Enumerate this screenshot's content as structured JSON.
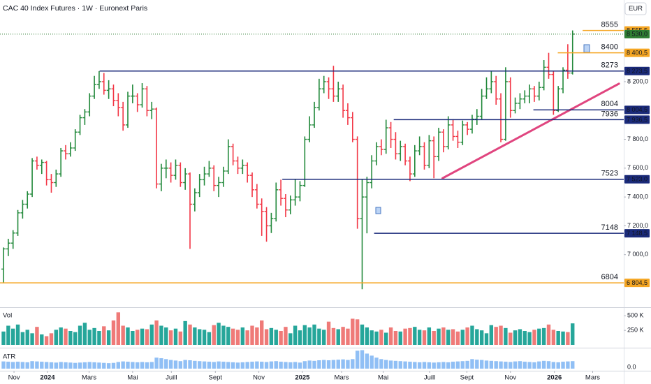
{
  "header": {
    "title": "CAC 40 Index Futures · 1W · Euronext Paris",
    "currency": "EUR"
  },
  "x_axis": {
    "ticks": [
      {
        "value": 2.2,
        "label": "Nov"
      },
      {
        "value": 9.2,
        "label": "2024"
      },
      {
        "value": 17.9,
        "label": "Mars"
      },
      {
        "value": 27.0,
        "label": "Mai"
      },
      {
        "value": 35.1,
        "label": "Juill"
      },
      {
        "value": 44.3,
        "label": "Sept"
      },
      {
        "value": 53.4,
        "label": "Nov"
      },
      {
        "value": 62.5,
        "label": "2025"
      },
      {
        "value": 70.7,
        "label": "Mars"
      },
      {
        "value": 79.4,
        "label": "Mai"
      },
      {
        "value": 89.1,
        "label": "Juill"
      },
      {
        "value": 96.9,
        "label": "Sept"
      },
      {
        "value": 106.0,
        "label": "Nov"
      },
      {
        "value": 115.2,
        "label": "2026"
      },
      {
        "value": 123.2,
        "label": "Mars"
      }
    ]
  },
  "chart_data": [
    {
      "type": "ohlc",
      "xlim": [
        -0.73,
        129.7
      ],
      "ylim": [
        6650,
        8660
      ],
      "up_color": "#22893b",
      "down_color": "#f23645",
      "yticks": [
        {
          "value": 8200,
          "label": "8 200,0"
        },
        {
          "value": 7800,
          "label": "7 800,0"
        },
        {
          "value": 7600,
          "label": "7 600,0"
        },
        {
          "value": 7400,
          "label": "7 400,0"
        },
        {
          "value": 7200,
          "label": "7 200,0"
        },
        {
          "value": 7000,
          "label": "7 000,0"
        }
      ],
      "ohlc": [
        [
          6900,
          7050,
          6805,
          7040
        ],
        [
          7040,
          7110,
          6990,
          7080
        ],
        [
          7080,
          7170,
          7040,
          7150
        ],
        [
          7150,
          7310,
          7130,
          7290
        ],
        [
          7290,
          7380,
          7250,
          7350
        ],
        [
          7350,
          7440,
          7320,
          7420
        ],
        [
          7420,
          7670,
          7400,
          7650
        ],
        [
          7650,
          7680,
          7590,
          7620
        ],
        [
          7620,
          7660,
          7560,
          7640
        ],
        [
          7640,
          7650,
          7480,
          7520
        ],
        [
          7520,
          7560,
          7430,
          7500
        ],
        [
          7500,
          7590,
          7470,
          7560
        ],
        [
          7560,
          7740,
          7540,
          7720
        ],
        [
          7720,
          7760,
          7660,
          7700
        ],
        [
          7700,
          7780,
          7680,
          7740
        ],
        [
          7740,
          7870,
          7720,
          7850
        ],
        [
          7850,
          7970,
          7830,
          7950
        ],
        [
          7950,
          8010,
          7900,
          7990
        ],
        [
          7990,
          8120,
          7960,
          8100
        ],
        [
          8100,
          8240,
          8080,
          8180
        ],
        [
          8180,
          8273,
          8150,
          8200
        ],
        [
          8200,
          8260,
          8110,
          8140
        ],
        [
          8140,
          8210,
          8080,
          8150
        ],
        [
          8150,
          8180,
          8030,
          8070
        ],
        [
          8070,
          8120,
          7960,
          8020
        ],
        [
          8020,
          8060,
          7860,
          7900
        ],
        [
          7900,
          8130,
          7880,
          8100
        ],
        [
          8100,
          8180,
          8050,
          8100
        ],
        [
          8100,
          8120,
          7990,
          8040
        ],
        [
          8040,
          8190,
          8020,
          8150
        ],
        [
          8150,
          8170,
          7960,
          8000
        ],
        [
          8000,
          8060,
          7940,
          8010
        ],
        [
          8010,
          8020,
          7460,
          7490
        ],
        [
          7490,
          7630,
          7440,
          7600
        ],
        [
          7600,
          7660,
          7530,
          7600
        ],
        [
          7600,
          7640,
          7500,
          7550
        ],
        [
          7550,
          7660,
          7520,
          7620
        ],
        [
          7620,
          7640,
          7470,
          7500
        ],
        [
          7500,
          7600,
          7450,
          7560
        ],
        [
          7560,
          7570,
          7040,
          7350
        ],
        [
          7350,
          7460,
          7300,
          7430
        ],
        [
          7430,
          7560,
          7400,
          7520
        ],
        [
          7520,
          7610,
          7480,
          7560
        ],
        [
          7560,
          7650,
          7540,
          7600
        ],
        [
          7600,
          7620,
          7440,
          7480
        ],
        [
          7480,
          7540,
          7400,
          7500
        ],
        [
          7500,
          7610,
          7470,
          7580
        ],
        [
          7580,
          7800,
          7560,
          7750
        ],
        [
          7750,
          7770,
          7620,
          7650
        ],
        [
          7650,
          7680,
          7560,
          7600
        ],
        [
          7600,
          7660,
          7560,
          7620
        ],
        [
          7620,
          7640,
          7500,
          7550
        ],
        [
          7550,
          7570,
          7400,
          7450
        ],
        [
          7450,
          7490,
          7320,
          7350
        ],
        [
          7350,
          7390,
          7130,
          7300
        ],
        [
          7300,
          7330,
          7090,
          7200
        ],
        [
          7200,
          7290,
          7150,
          7250
        ],
        [
          7250,
          7500,
          7230,
          7450
        ],
        [
          7450,
          7520,
          7340,
          7390
        ],
        [
          7390,
          7420,
          7260,
          7310
        ],
        [
          7310,
          7410,
          7280,
          7380
        ],
        [
          7380,
          7523,
          7340,
          7400
        ],
        [
          7400,
          7510,
          7370,
          7480
        ],
        [
          7480,
          7820,
          7470,
          7800
        ],
        [
          7800,
          7960,
          7780,
          7900
        ],
        [
          7900,
          8060,
          7880,
          8020
        ],
        [
          8020,
          8220,
          8000,
          8150
        ],
        [
          8150,
          8240,
          8120,
          8200
        ],
        [
          8200,
          8230,
          8080,
          8150
        ],
        [
          8150,
          8310,
          8060,
          8100
        ],
        [
          8100,
          8200,
          8060,
          8150
        ],
        [
          8150,
          8180,
          7950,
          8000
        ],
        [
          8000,
          8050,
          7900,
          7950
        ],
        [
          7950,
          7990,
          7780,
          7800
        ],
        [
          7800,
          7820,
          7180,
          7250
        ],
        [
          7250,
          7520,
          6760,
          7400
        ],
        [
          7400,
          7540,
          7148,
          7500
        ],
        [
          7500,
          7690,
          7460,
          7650
        ],
        [
          7650,
          7780,
          7620,
          7750
        ],
        [
          7750,
          7800,
          7690,
          7730
        ],
        [
          7730,
          7936,
          7700,
          7880
        ],
        [
          7880,
          7920,
          7740,
          7800
        ],
        [
          7800,
          7850,
          7660,
          7700
        ],
        [
          7700,
          7790,
          7650,
          7750
        ],
        [
          7750,
          7770,
          7620,
          7650
        ],
        [
          7650,
          7680,
          7510,
          7560
        ],
        [
          7560,
          7760,
          7540,
          7720
        ],
        [
          7720,
          7820,
          7690,
          7750
        ],
        [
          7750,
          7780,
          7590,
          7620
        ],
        [
          7620,
          7830,
          7600,
          7790
        ],
        [
          7790,
          7820,
          7530,
          7680
        ],
        [
          7680,
          7880,
          7650,
          7850
        ],
        [
          7850,
          7870,
          7710,
          7750
        ],
        [
          7750,
          7960,
          7730,
          7900
        ],
        [
          7900,
          7940,
          7790,
          7820
        ],
        [
          7820,
          7860,
          7740,
          7780
        ],
        [
          7780,
          7930,
          7760,
          7900
        ],
        [
          7900,
          7920,
          7830,
          7870
        ],
        [
          7870,
          7970,
          7840,
          7940
        ],
        [
          7940,
          8010,
          7900,
          7960
        ],
        [
          7960,
          8150,
          7940,
          8100
        ],
        [
          8100,
          8230,
          8080,
          8150
        ],
        [
          8150,
          8273,
          8120,
          8200
        ],
        [
          8200,
          8240,
          8040,
          8080
        ],
        [
          8080,
          8120,
          7780,
          7800
        ],
        [
          7800,
          8300,
          7790,
          8200
        ],
        [
          8200,
          8230,
          7950,
          8000
        ],
        [
          8000,
          8090,
          7980,
          8050
        ],
        [
          8050,
          8120,
          8010,
          8080
        ],
        [
          8080,
          8140,
          8050,
          8100
        ],
        [
          8100,
          8180,
          8050,
          8150
        ],
        [
          8150,
          8170,
          8060,
          8100
        ],
        [
          8100,
          8200,
          8070,
          8160
        ],
        [
          8160,
          8350,
          8140,
          8300
        ],
        [
          8300,
          8400,
          8220,
          8250
        ],
        [
          8250,
          8270,
          7970,
          8000
        ],
        [
          8000,
          8170,
          7990,
          8150
        ],
        [
          8150,
          8300,
          8120,
          8280
        ],
        [
          8280,
          8460,
          8220,
          8260
        ],
        [
          8260,
          8555.5,
          8250,
          8530
        ]
      ],
      "levels": [
        {
          "text": "8555",
          "value": 8555.5,
          "price_label": "8 555,5",
          "from": 121.1,
          "color": "#f5a623",
          "box_text_color": "#131722"
        },
        {
          "text": "8400",
          "value": 8400.5,
          "price_label": "8 400,5",
          "from": 115.9,
          "color": "#f5a623",
          "box_text_color": "#131722"
        },
        {
          "text": "8273",
          "value": 8273.5,
          "price_label": "8 273,5",
          "from": 20.1,
          "color": "#1a2a7a",
          "box_text_color": "#ffffff"
        },
        {
          "text": "8004",
          "value": 8004.5,
          "price_label": "8 004,5",
          "from": 110.8,
          "color": "#1a2a7a",
          "box_text_color": "#ffffff"
        },
        {
          "text": "7936",
          "value": 7936.5,
          "price_label": "7 936,5",
          "from": 81.6,
          "color": "#1a2a7a",
          "box_text_color": "#ffffff"
        },
        {
          "text": "7523",
          "value": 7523.0,
          "price_label": "7 523,0",
          "from": 58.3,
          "color": "#1a2a7a",
          "box_text_color": "#ffffff"
        },
        {
          "text": "7148",
          "value": 7148.5,
          "price_label": "7 148,5",
          "from": 77.5,
          "color": "#1a2a7a",
          "box_text_color": "#ffffff"
        },
        {
          "text": "6804",
          "value": 6804.5,
          "price_label": "6 804,5",
          "from": -0.73,
          "color": "#f5a623",
          "box_text_color": "#131722"
        }
      ],
      "last_price": {
        "value": 8530,
        "label": "8 530,0",
        "color": "#2e7d32"
      },
      "trendline": {
        "points": [
          [
            91.8,
            7530
          ],
          [
            128.7,
            8186
          ]
        ],
        "color": "#e0457f"
      }
    },
    {
      "type": "volume",
      "name": "Vol",
      "up_color": "#26a69a",
      "down_color": "#ef7a78",
      "ylim": [
        0,
        600000
      ],
      "yticks": [
        {
          "value": 500000,
          "label": "500 K"
        },
        {
          "value": 250000,
          "label": "250 K"
        }
      ],
      "values": [
        230000,
        330000,
        280000,
        350000,
        220000,
        260000,
        200000,
        310000,
        180000,
        150000,
        200000,
        260000,
        300000,
        280000,
        240000,
        220000,
        330000,
        380000,
        260000,
        290000,
        240000,
        320000,
        250000,
        420000,
        560000,
        330000,
        300000,
        240000,
        260000,
        280000,
        270000,
        350000,
        420000,
        330000,
        300000,
        250000,
        280000,
        230000,
        410000,
        350000,
        300000,
        270000,
        260000,
        220000,
        340000,
        380000,
        330000,
        310000,
        280000,
        260000,
        300000,
        250000,
        330000,
        300000,
        420000,
        270000,
        290000,
        260000,
        240000,
        310000,
        200000,
        330000,
        250000,
        340000,
        300000,
        350000,
        280000,
        260000,
        400000,
        290000,
        270000,
        310000,
        280000,
        450000,
        440000,
        350000,
        300000,
        250000,
        230000,
        260000,
        210000,
        300000,
        240000,
        230000,
        280000,
        290000,
        310000,
        260000,
        250000,
        300000,
        240000,
        280000,
        300000,
        260000,
        270000,
        230000,
        260000,
        300000,
        330000,
        270000,
        250000,
        200000,
        340000,
        310000,
        330000,
        290000,
        210000,
        250000,
        270000,
        240000,
        220000,
        260000,
        280000,
        290000,
        350000,
        260000,
        240000,
        230000,
        220000,
        370000
      ]
    },
    {
      "type": "bar",
      "name": "ATR",
      "color": "#90bff5",
      "ylim": [
        0,
        700
      ],
      "yticks": [
        {
          "value": 0,
          "label": "0.0"
        }
      ],
      "values": [
        250,
        240,
        230,
        240,
        230,
        220,
        260,
        250,
        240,
        230,
        220,
        210,
        230,
        220,
        210,
        200,
        210,
        220,
        230,
        220,
        210,
        200,
        190,
        200,
        230,
        250,
        240,
        230,
        220,
        230,
        220,
        230,
        380,
        360,
        330,
        300,
        280,
        260,
        300,
        290,
        270,
        260,
        250,
        240,
        230,
        250,
        240,
        230,
        220,
        210,
        220,
        230,
        240,
        250,
        240,
        230,
        250,
        260,
        240,
        230,
        220,
        230,
        210,
        260,
        280,
        270,
        290,
        300,
        290,
        300,
        310,
        320,
        300,
        330,
        620,
        640,
        520,
        450,
        380,
        330,
        300,
        280,
        270,
        260,
        250,
        240,
        230,
        220,
        230,
        220,
        210,
        220,
        230,
        220,
        240,
        250,
        260,
        270,
        330,
        310,
        300,
        280,
        270,
        260,
        250,
        240,
        230,
        250,
        260,
        240,
        230,
        220,
        250,
        270,
        260,
        230,
        220,
        240,
        250,
        260
      ]
    }
  ]
}
